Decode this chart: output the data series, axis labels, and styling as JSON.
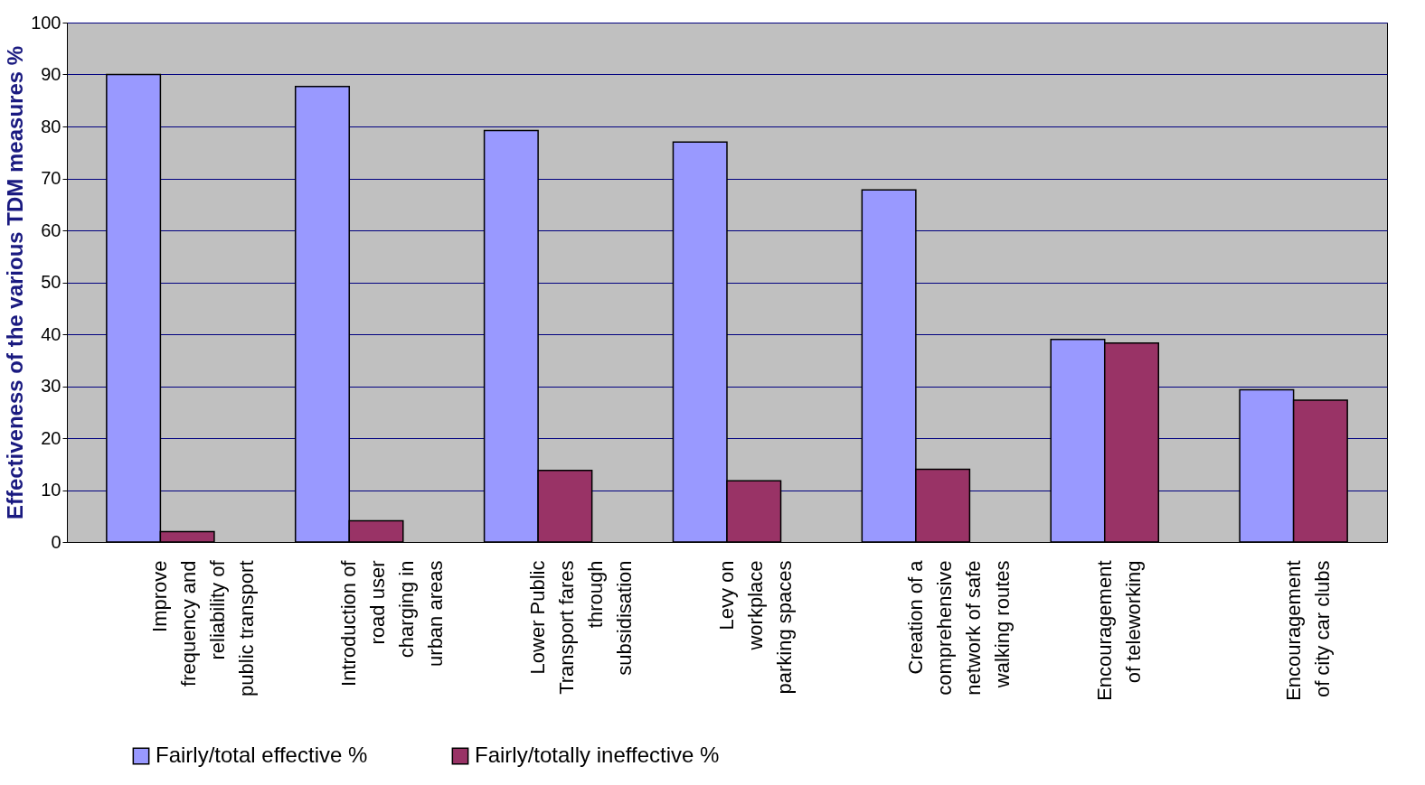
{
  "chart_data": {
    "type": "bar",
    "ylabel": "Effectiveness of the various TDM measures %",
    "categories": [
      "Improve\nfrequency and\nreliability of\npublic transport",
      "Introduction of\nroad user\ncharging in\nurban areas",
      "Lower Public\nTransport fares\nthrough\nsubsidisation",
      "Levy on\nworkplace\nparking spaces",
      "Creation of a\ncomprehensive\nnetwork of safe\nwalking routes",
      "Encouragement\nof teleworking",
      "Encouragement\nof city car clubs"
    ],
    "series": [
      {
        "name": "Fairly/total effective %",
        "color": "#9999ff",
        "values": [
          90,
          87.7,
          79.2,
          77,
          67.8,
          39,
          29.3
        ]
      },
      {
        "name": "Fairly/totally ineffective %",
        "color": "#993366",
        "values": [
          2,
          4.1,
          13.8,
          11.8,
          14,
          38.3,
          27.3
        ]
      }
    ],
    "ylim": [
      0,
      100
    ],
    "yticks": [
      0,
      10,
      20,
      30,
      40,
      50,
      60,
      70,
      80,
      90,
      100
    ],
    "grid": "y",
    "legend": "bottom left"
  }
}
